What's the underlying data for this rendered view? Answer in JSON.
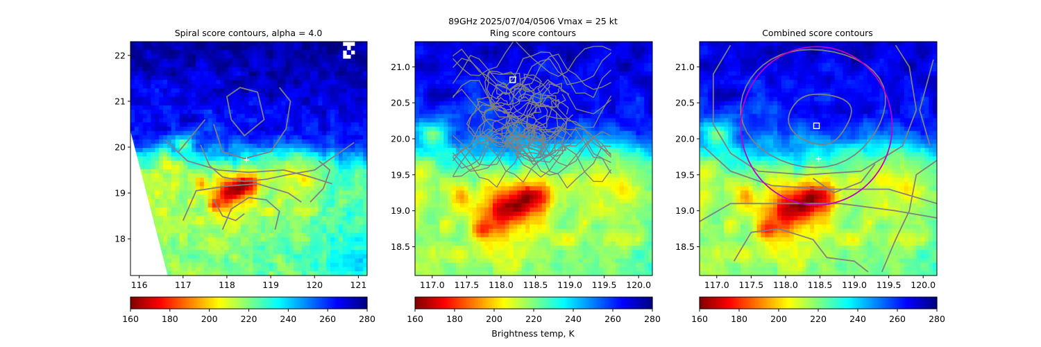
{
  "figure": {
    "suptitle_line1": "89GHz  2025/07/04/0506    Vmax = 25 kt",
    "colorbar_label": "Brightness temp, K"
  },
  "colors": {
    "contour": "#808080",
    "circle": "#c000c0",
    "marker": "#ffffff",
    "colormap": "jet_r"
  },
  "chart_data": [
    {
      "type": "heatmap",
      "title": "Spiral score contours, alpha =  4.0",
      "xlabel": "",
      "ylabel": "",
      "xlim": [
        115.8,
        121.2
      ],
      "ylim": [
        17.2,
        22.3
      ],
      "xticks": [
        "116",
        "117",
        "118",
        "119",
        "120",
        "121"
      ],
      "yticks": [
        "18",
        "19",
        "20",
        "21",
        "22"
      ],
      "colorbar": {
        "min": 160,
        "max": 280,
        "ticks": [
          "160",
          "180",
          "200",
          "220",
          "240",
          "260",
          "280"
        ]
      },
      "swath_edge": "left",
      "markers": [
        {
          "shape": "plus",
          "x": 118.45,
          "y": 19.72
        }
      ],
      "contours": "spiral",
      "circle": null
    },
    {
      "type": "heatmap",
      "title": "Ring score contours",
      "xlabel": "",
      "ylabel": "",
      "xlim": [
        116.75,
        120.2
      ],
      "ylim": [
        18.1,
        21.35
      ],
      "xticks": [
        "117.0",
        "117.5",
        "118.0",
        "118.5",
        "119.0",
        "119.5",
        "120.0"
      ],
      "yticks": [
        "18.5",
        "19.0",
        "19.5",
        "20.0",
        "20.5",
        "21.0"
      ],
      "colorbar": {
        "min": 160,
        "max": 280,
        "ticks": [
          "160",
          "180",
          "200",
          "220",
          "240",
          "260",
          "280"
        ]
      },
      "swath_edge": "none",
      "markers": [
        {
          "shape": "square",
          "x": 118.17,
          "y": 20.82
        }
      ],
      "contours": "ring",
      "circle": null
    },
    {
      "type": "heatmap",
      "title": "Combined score contours",
      "xlabel": "",
      "ylabel": "",
      "xlim": [
        116.75,
        120.2
      ],
      "ylim": [
        18.1,
        21.35
      ],
      "xticks": [
        "117.0",
        "117.5",
        "118.0",
        "118.5",
        "119.0",
        "119.5",
        "120.0"
      ],
      "yticks": [
        "18.5",
        "19.0",
        "19.5",
        "20.0",
        "20.5",
        "21.0"
      ],
      "colorbar": {
        "min": 160,
        "max": 280,
        "ticks": [
          "160",
          "180",
          "200",
          "220",
          "240",
          "260",
          "280"
        ]
      },
      "swath_edge": "none",
      "markers": [
        {
          "shape": "square",
          "x": 118.45,
          "y": 20.18
        },
        {
          "shape": "plus",
          "x": 118.48,
          "y": 19.72
        }
      ],
      "contours": "combined",
      "circle": {
        "cx": 118.45,
        "cy": 20.18,
        "r": 1.1
      }
    }
  ]
}
